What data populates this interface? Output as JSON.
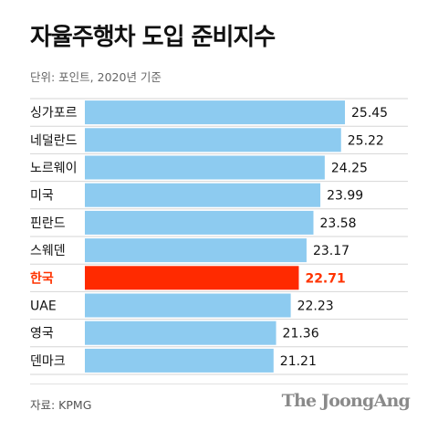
{
  "header": {
    "title": "자율주행차 도입 준비지수",
    "subtitle": "단위: 포인트, 2020년 기준"
  },
  "footer": {
    "source": "자료: KPMG",
    "brand": "The JoongAng"
  },
  "colors": {
    "bar": "#8dcbf0",
    "highlight_bar": "#ff2a00",
    "highlight_text": "#ff3300",
    "grid": "#d6d6d6",
    "text": "#111111"
  },
  "chart_data": {
    "type": "bar",
    "orientation": "horizontal",
    "categories": [
      "싱가포르",
      "네덜란드",
      "노르웨이",
      "미국",
      "핀란드",
      "스웨덴",
      "한국",
      "UAE",
      "영국",
      "덴마크"
    ],
    "values": [
      25.45,
      25.22,
      24.25,
      23.99,
      23.58,
      23.17,
      22.71,
      22.23,
      21.36,
      21.21
    ],
    "value_labels": [
      "25.45",
      "25.22",
      "24.25",
      "23.99",
      "23.58",
      "23.17",
      "22.71",
      "22.23",
      "21.36",
      "21.21"
    ],
    "highlight": "한국",
    "title": "자율주행차 도입 준비지수",
    "unit": "포인트"
  }
}
